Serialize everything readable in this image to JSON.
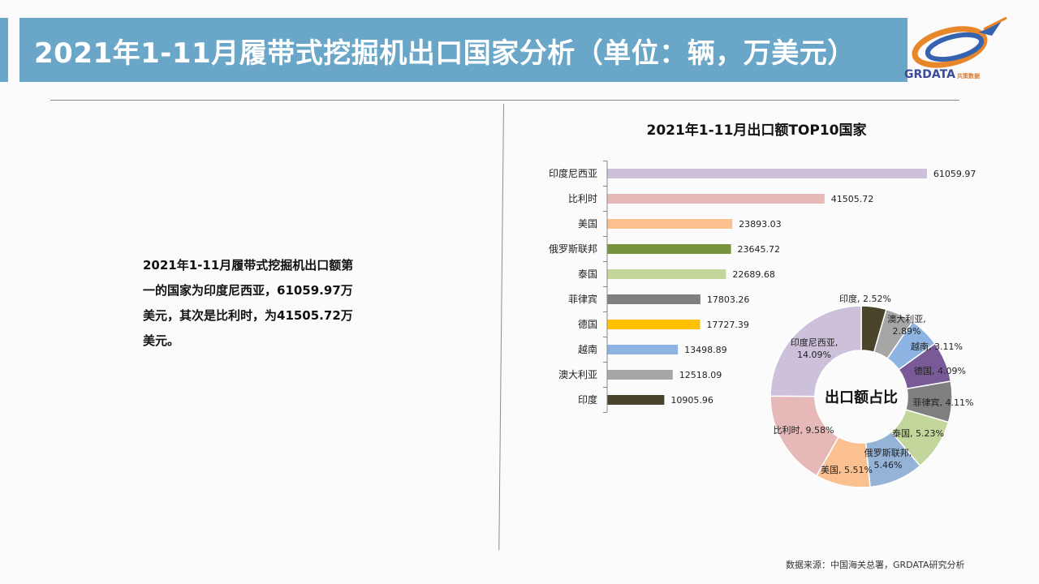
{
  "header": {
    "title": "2021年1-11月履带式挖掘机出口国家分析（单位：辆，万美元）"
  },
  "logo": {
    "text": "GRDATA",
    "sub": "共策数据"
  },
  "summary": {
    "text": "2021年1-11月履带式挖掘机出口额第一的国家为印度尼西亚，61059.97万美元，其次是比利时，为41505.72万美元。"
  },
  "source": {
    "text": "数据来源：中国海关总署，GRDATA研究分析"
  },
  "chart_data": [
    {
      "type": "bar",
      "orientation": "horizontal",
      "title": "2021年1-11月出口额TOP10国家",
      "categories": [
        "印度尼西亚",
        "比利时",
        "美国",
        "俄罗斯联邦",
        "泰国",
        "菲律宾",
        "德国",
        "越南",
        "澳大利亚",
        "印度"
      ],
      "values": [
        61059.97,
        41505.72,
        23893.03,
        23645.72,
        22689.68,
        17803.26,
        17727.39,
        13498.89,
        12518.09,
        10905.96
      ],
      "value_labels": [
        "61059.97",
        "41505.72",
        "23893.03",
        "23645.72",
        "22689.68",
        "17803.26",
        "17727.39",
        "13498.89",
        "12518.09",
        "10905.96"
      ],
      "colors": [
        "#ccc0da",
        "#e6b9b8",
        "#fac090",
        "#77933c",
        "#c3d69b",
        "#7f7f7f",
        "#ffc000",
        "#8db3e2",
        "#a6a6a6",
        "#4a452a"
      ],
      "xlim": [
        0,
        62000
      ]
    },
    {
      "type": "pie",
      "variant": "donut",
      "center_label": "出口额占比",
      "slices": [
        {
          "label": "印度, 2.52%",
          "value": 2.52,
          "color": "#4a452a"
        },
        {
          "label": "澳大利亚, 2.89%",
          "value": 2.89,
          "color": "#a6a6a6"
        },
        {
          "label": "越南, 3.11%",
          "value": 3.11,
          "color": "#8db3e2"
        },
        {
          "label": "德国, 4.09%",
          "value": 4.09,
          "color": "#7a5a96"
        },
        {
          "label": "菲律宾, 4.11%",
          "value": 4.11,
          "color": "#7f7f7f"
        },
        {
          "label": "泰国, 5.23%",
          "value": 5.23,
          "color": "#c3d69b"
        },
        {
          "label": "俄罗斯联邦, 5.46%",
          "value": 5.46,
          "color": "#95b3d7"
        },
        {
          "label": "美国, 5.51%",
          "value": 5.51,
          "color": "#fac090"
        },
        {
          "label": "比利时, 9.58%",
          "value": 9.58,
          "color": "#e6b9b8"
        },
        {
          "label": "印度尼西亚, 14.09%",
          "value": 14.09,
          "color": "#ccc0da"
        }
      ]
    }
  ]
}
